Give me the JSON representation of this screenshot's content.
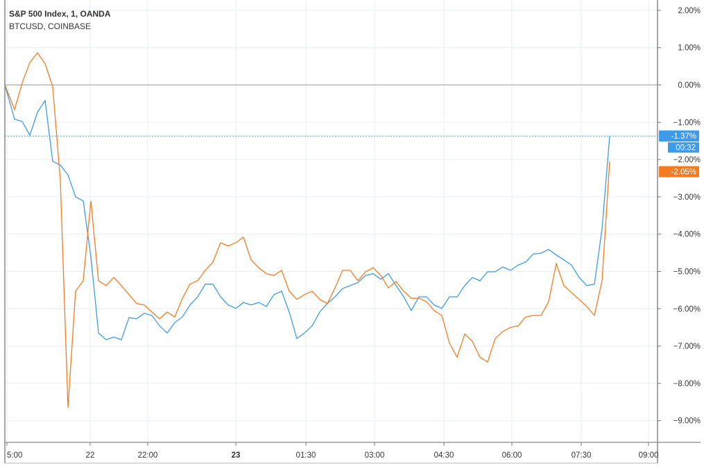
{
  "legend": {
    "series1": "S&P 500 Index, 1, OANDA",
    "series2": "BTCUSD, COINBASE"
  },
  "price_tags": {
    "series1_last": "-1.37%",
    "countdown": "00:32",
    "series2_last": "-2.05%"
  },
  "colors": {
    "series1": "#3d9be9",
    "series2": "#f47b20",
    "grid": "#e8eef4",
    "zero_line": "#9e9e9e",
    "axis": "#787878"
  },
  "chart_data": {
    "type": "line",
    "title": "",
    "xlabel": "",
    "ylabel": "",
    "ylim": [
      -10.0,
      2.2
    ],
    "grid": true,
    "legend_placement": "top-left",
    "y_ticks": [
      2,
      1,
      0,
      -1,
      -2,
      -3,
      -4,
      -5,
      -6,
      -7,
      -8,
      -9
    ],
    "y_tick_labels": [
      "2.00%",
      "1.00%",
      "0.00%",
      "−1.00%",
      "−2.00%",
      "−3.00%",
      "−4.00%",
      "−5.00%",
      "−6.00%",
      "−7.00%",
      "−8.00%",
      "−9.00%"
    ],
    "x_tick_labels": [
      "5:00",
      "22",
      "22:00",
      "23",
      "01:30",
      "03:00",
      "04:30",
      "06:00",
      "07:30",
      "09:00"
    ],
    "x": [
      "19:00",
      "19:10",
      "19:20",
      "19:30",
      "19:40",
      "19:50",
      "20:00",
      "20:10",
      "20:20",
      "20:30",
      "20:40",
      "20:50",
      "21:00",
      "21:10",
      "21:20",
      "21:30",
      "21:40",
      "21:50",
      "22:00",
      "22:10",
      "22:20",
      "22:30",
      "22:40",
      "22:50",
      "23:00",
      "23:10",
      "23:20",
      "23:30",
      "23:40",
      "23:50",
      "00:00",
      "00:10",
      "00:20",
      "00:30",
      "00:40",
      "00:50",
      "01:00",
      "01:10",
      "01:20",
      "01:30",
      "01:40",
      "01:50",
      "02:00",
      "02:10",
      "02:20",
      "02:30",
      "02:40",
      "02:50",
      "03:00",
      "03:10",
      "03:20",
      "03:30",
      "03:40",
      "03:50",
      "04:00",
      "04:10",
      "04:20",
      "04:30",
      "04:40",
      "04:50",
      "05:00",
      "05:10",
      "05:20",
      "05:30",
      "05:40",
      "05:50",
      "06:00",
      "06:10",
      "06:20",
      "06:30",
      "06:40",
      "06:50",
      "07:00",
      "07:10",
      "07:20",
      "07:30",
      "07:40",
      "07:50",
      "08:00",
      "08:10"
    ],
    "series": [
      {
        "name": "S&P 500 Index, 1, OANDA",
        "unit": "%",
        "values": [
          0,
          -0.92,
          -0.98,
          -1.35,
          -0.73,
          -0.42,
          -2.05,
          -2.15,
          -2.41,
          -3.0,
          -3.11,
          -4.6,
          -6.65,
          -6.83,
          -6.76,
          -6.83,
          -6.24,
          -6.27,
          -6.12,
          -6.18,
          -6.46,
          -6.65,
          -6.37,
          -6.22,
          -5.9,
          -5.68,
          -5.34,
          -5.34,
          -5.68,
          -5.9,
          -5.99,
          -5.83,
          -5.9,
          -5.83,
          -5.94,
          -5.62,
          -5.53,
          -6.09,
          -6.8,
          -6.65,
          -6.46,
          -6.09,
          -5.86,
          -5.68,
          -5.46,
          -5.38,
          -5.3,
          -5.11,
          -5.06,
          -5.21,
          -5.06,
          -5.38,
          -5.68,
          -6.05,
          -5.68,
          -5.68,
          -5.9,
          -5.99,
          -5.68,
          -5.68,
          -5.38,
          -5.16,
          -5.25,
          -5.01,
          -5.01,
          -4.88,
          -4.97,
          -4.83,
          -4.75,
          -4.53,
          -4.51,
          -4.41,
          -4.56,
          -4.69,
          -4.83,
          -5.16,
          -5.38,
          -5.34,
          -3.86,
          -1.37
        ]
      },
      {
        "name": "BTCUSD, COINBASE",
        "unit": "%",
        "values": [
          0,
          -0.66,
          0.05,
          0.6,
          0.86,
          0.57,
          -0.05,
          -2.56,
          -8.65,
          -5.53,
          -5.25,
          -3.11,
          -5.25,
          -5.38,
          -5.16,
          -5.38,
          -5.62,
          -5.86,
          -5.9,
          -6.09,
          -6.27,
          -6.09,
          -6.22,
          -5.72,
          -5.34,
          -5.25,
          -4.97,
          -4.75,
          -4.23,
          -4.32,
          -4.23,
          -4.08,
          -4.69,
          -4.9,
          -5.06,
          -5.11,
          -4.97,
          -5.53,
          -5.75,
          -5.62,
          -5.53,
          -5.75,
          -5.86,
          -5.44,
          -4.97,
          -4.97,
          -5.25,
          -5.01,
          -4.9,
          -5.11,
          -5.44,
          -5.27,
          -5.53,
          -5.72,
          -5.72,
          -5.81,
          -6.05,
          -6.18,
          -6.92,
          -7.3,
          -6.68,
          -6.87,
          -7.3,
          -7.43,
          -6.8,
          -6.61,
          -6.5,
          -6.46,
          -6.22,
          -6.18,
          -6.18,
          -5.81,
          -4.79,
          -5.38,
          -5.57,
          -5.75,
          -5.94,
          -6.18,
          -5.25,
          -2.05
        ]
      }
    ]
  }
}
